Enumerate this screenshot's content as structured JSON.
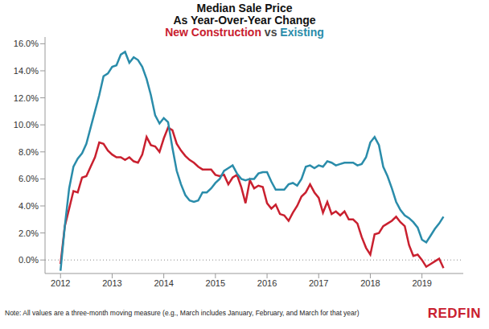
{
  "chart_data": {
    "type": "line",
    "title": "Median Sale Price",
    "subtitle": "As Year-Over-Year Change",
    "legend": "top",
    "annotations": [
      "vs",
      "Note: All values are a three-month moving measure (e.g., March includes January, February, and March for that year)",
      "REDFIN"
    ],
    "x": [
      2012,
      2012.083,
      2012.167,
      2012.25,
      2012.333,
      2012.417,
      2012.5,
      2012.583,
      2012.667,
      2012.75,
      2012.833,
      2012.917,
      2013,
      2013.083,
      2013.167,
      2013.25,
      2013.333,
      2013.417,
      2013.5,
      2013.583,
      2013.667,
      2013.75,
      2013.833,
      2013.917,
      2014,
      2014.083,
      2014.167,
      2014.25,
      2014.333,
      2014.417,
      2014.5,
      2014.583,
      2014.667,
      2014.75,
      2014.833,
      2014.917,
      2015,
      2015.083,
      2015.167,
      2015.25,
      2015.333,
      2015.417,
      2015.5,
      2015.583,
      2015.667,
      2015.75,
      2015.833,
      2015.917,
      2016,
      2016.083,
      2016.167,
      2016.25,
      2016.333,
      2016.417,
      2016.5,
      2016.583,
      2016.667,
      2016.75,
      2016.833,
      2016.917,
      2017,
      2017.083,
      2017.167,
      2017.25,
      2017.333,
      2017.417,
      2017.5,
      2017.583,
      2017.667,
      2017.75,
      2017.833,
      2017.917,
      2018,
      2018.083,
      2018.167,
      2018.25,
      2018.333,
      2018.417,
      2018.5,
      2018.583,
      2018.667,
      2018.75,
      2018.833,
      2018.917,
      2019,
      2019.083,
      2019.167,
      2019.25,
      2019.333,
      2019.417
    ],
    "series": [
      {
        "name": "New Construction",
        "color": "#c9202f",
        "values": [
          -0.3,
          2.5,
          3.8,
          5.1,
          5.0,
          6.1,
          6.2,
          6.9,
          7.6,
          8.7,
          8.6,
          8.1,
          7.8,
          7.6,
          7.6,
          7.4,
          7.6,
          7.3,
          7.2,
          7.8,
          9.1,
          8.5,
          8.4,
          8.0,
          9.0,
          9.8,
          9.6,
          8.6,
          8.1,
          7.7,
          7.4,
          7.2,
          6.9,
          6.7,
          6.7,
          6.7,
          6.3,
          6.2,
          6.3,
          5.6,
          6.1,
          6.3,
          5.4,
          4.2,
          5.9,
          5.3,
          5.5,
          5.4,
          4.2,
          3.8,
          4.1,
          3.4,
          3.3,
          2.9,
          3.5,
          4.0,
          4.7,
          5.0,
          5.6,
          5.0,
          4.6,
          3.5,
          4.3,
          3.4,
          3.6,
          3.3,
          3.6,
          3.0,
          3.0,
          2.7,
          1.7,
          0.9,
          0.4,
          1.9,
          2.0,
          2.5,
          2.7,
          2.9,
          3.2,
          2.8,
          2.5,
          1.1,
          0.3,
          0.4,
          0.0,
          -0.5,
          -0.3,
          -0.1,
          0.1,
          -0.6
        ]
      },
      {
        "name": "Existing",
        "color": "#2a8caa",
        "values": [
          -0.8,
          2.5,
          5.3,
          6.9,
          7.5,
          7.9,
          8.6,
          9.8,
          11.0,
          12.2,
          13.6,
          13.8,
          14.3,
          14.4,
          15.2,
          15.4,
          14.6,
          15.0,
          14.8,
          14.3,
          13.4,
          12.2,
          10.7,
          10.1,
          10.5,
          10.2,
          8.3,
          6.6,
          5.6,
          4.8,
          4.4,
          4.3,
          4.4,
          5.0,
          5.0,
          5.3,
          5.7,
          6.0,
          6.6,
          6.8,
          7.0,
          6.4,
          6.0,
          5.9,
          6.0,
          6.0,
          6.4,
          6.5,
          6.5,
          5.8,
          5.2,
          5.2,
          5.2,
          5.6,
          5.7,
          5.5,
          6.0,
          6.9,
          7.0,
          6.8,
          7.0,
          6.9,
          7.3,
          7.2,
          7.0,
          7.1,
          7.2,
          7.2,
          7.2,
          7.0,
          7.1,
          7.6,
          8.7,
          9.1,
          8.5,
          6.9,
          6.2,
          5.3,
          4.3,
          3.7,
          3.3,
          3.1,
          2.8,
          2.4,
          1.5,
          1.3,
          1.8,
          2.3,
          2.7,
          3.2
        ]
      }
    ],
    "xlim": [
      2011.7,
      2019.8
    ],
    "xticks": [
      2012,
      2013,
      2014,
      2015,
      2016,
      2017,
      2018,
      2019
    ],
    "ylim": [
      -1,
      16.5
    ],
    "yticks": [
      {
        "value": 0,
        "label": "0.0%"
      },
      {
        "value": 2,
        "label": "2.0%"
      },
      {
        "value": 4,
        "label": "4.0%"
      },
      {
        "value": 6,
        "label": "6.0%"
      },
      {
        "value": 8,
        "label": "8.0%"
      },
      {
        "value": 10,
        "label": "10.0%"
      },
      {
        "value": 12,
        "label": "12.0%"
      },
      {
        "value": 14,
        "label": "14.0%"
      },
      {
        "value": 16,
        "label": "16.0%"
      }
    ]
  }
}
